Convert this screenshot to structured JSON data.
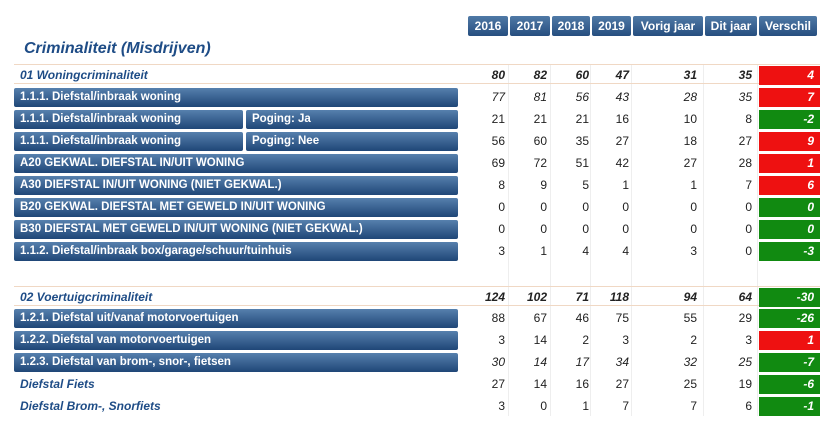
{
  "columns": [
    "2016",
    "2017",
    "2018",
    "2019",
    "Vorig jaar",
    "Dit jaar",
    "Verschil"
  ],
  "title": "Criminaliteit (Misdrijven)",
  "rows": [
    {
      "kind": "group",
      "label": "01 Woningcriminaliteit",
      "values": [
        "80",
        "82",
        "60",
        "47",
        "31",
        "35"
      ],
      "diff": "4",
      "status": "red"
    },
    {
      "kind": "bar",
      "label": "1.1.1. Diefstal/inbraak woning",
      "values": [
        "77",
        "81",
        "56",
        "43",
        "28",
        "35"
      ],
      "italic": true,
      "diff": "7",
      "status": "red"
    },
    {
      "kind": "bar",
      "label": "1.1.1. Diefstal/inbraak woning",
      "sublabel": "Poging: Ja",
      "values": [
        "21",
        "21",
        "21",
        "16",
        "10",
        "8"
      ],
      "diff": "-2",
      "status": "green"
    },
    {
      "kind": "bar",
      "label": "1.1.1. Diefstal/inbraak woning",
      "sublabel": "Poging: Nee",
      "values": [
        "56",
        "60",
        "35",
        "27",
        "18",
        "27"
      ],
      "diff": "9",
      "status": "red"
    },
    {
      "kind": "bar",
      "label": "A20 GEKWAL. DIEFSTAL IN/UIT WONING",
      "values": [
        "69",
        "72",
        "51",
        "42",
        "27",
        "28"
      ],
      "diff": "1",
      "status": "red"
    },
    {
      "kind": "bar",
      "label": "A30 DIEFSTAL IN/UIT WONING (NIET GEKWAL.)",
      "values": [
        "8",
        "9",
        "5",
        "1",
        "1",
        "7"
      ],
      "diff": "6",
      "status": "red"
    },
    {
      "kind": "bar",
      "label": "B20 GEKWAL. DIEFSTAL MET GEWELD IN/UIT WONING",
      "values": [
        "0",
        "0",
        "0",
        "0",
        "0",
        "0"
      ],
      "diff": "0",
      "status": "green"
    },
    {
      "kind": "bar",
      "label": "B30 DIEFSTAL MET GEWELD IN/UIT WONING (NIET GEKWAL.)",
      "values": [
        "0",
        "0",
        "0",
        "0",
        "0",
        "0"
      ],
      "diff": "0",
      "status": "green"
    },
    {
      "kind": "bar",
      "label": "1.1.2. Diefstal/inbraak box/garage/schuur/tuinhuis",
      "values": [
        "3",
        "1",
        "4",
        "4",
        "3",
        "0"
      ],
      "diff": "-3",
      "status": "green"
    },
    {
      "kind": "group",
      "label": "02 Voertuigcriminaliteit",
      "values": [
        "124",
        "102",
        "71",
        "118",
        "94",
        "64"
      ],
      "diff": "-30",
      "status": "green"
    },
    {
      "kind": "bar",
      "label": "1.2.1. Diefstal uit/vanaf motorvoertuigen",
      "values": [
        "88",
        "67",
        "46",
        "75",
        "55",
        "29"
      ],
      "diff": "-26",
      "status": "green"
    },
    {
      "kind": "bar",
      "label": "1.2.2. Diefstal van motorvoertuigen",
      "values": [
        "3",
        "14",
        "2",
        "3",
        "2",
        "3"
      ],
      "diff": "1",
      "status": "red"
    },
    {
      "kind": "bar",
      "label": "1.2.3. Diefstal van brom-, snor-, fietsen",
      "values": [
        "30",
        "14",
        "17",
        "34",
        "32",
        "25"
      ],
      "italic": true,
      "diff": "-7",
      "status": "green"
    },
    {
      "kind": "plain",
      "label": "Diefstal Fiets",
      "values": [
        "27",
        "14",
        "16",
        "27",
        "25",
        "19"
      ],
      "diff": "-6",
      "status": "green"
    },
    {
      "kind": "plain",
      "label": "Diefstal Brom-, Snorfiets",
      "values": [
        "3",
        "0",
        "1",
        "7",
        "7",
        "6"
      ],
      "diff": "-1",
      "status": "green"
    }
  ],
  "colors": {
    "header": "#264e7f",
    "increase": "#ee1111",
    "decrease": "#118a11",
    "title": "#1e4c86"
  }
}
